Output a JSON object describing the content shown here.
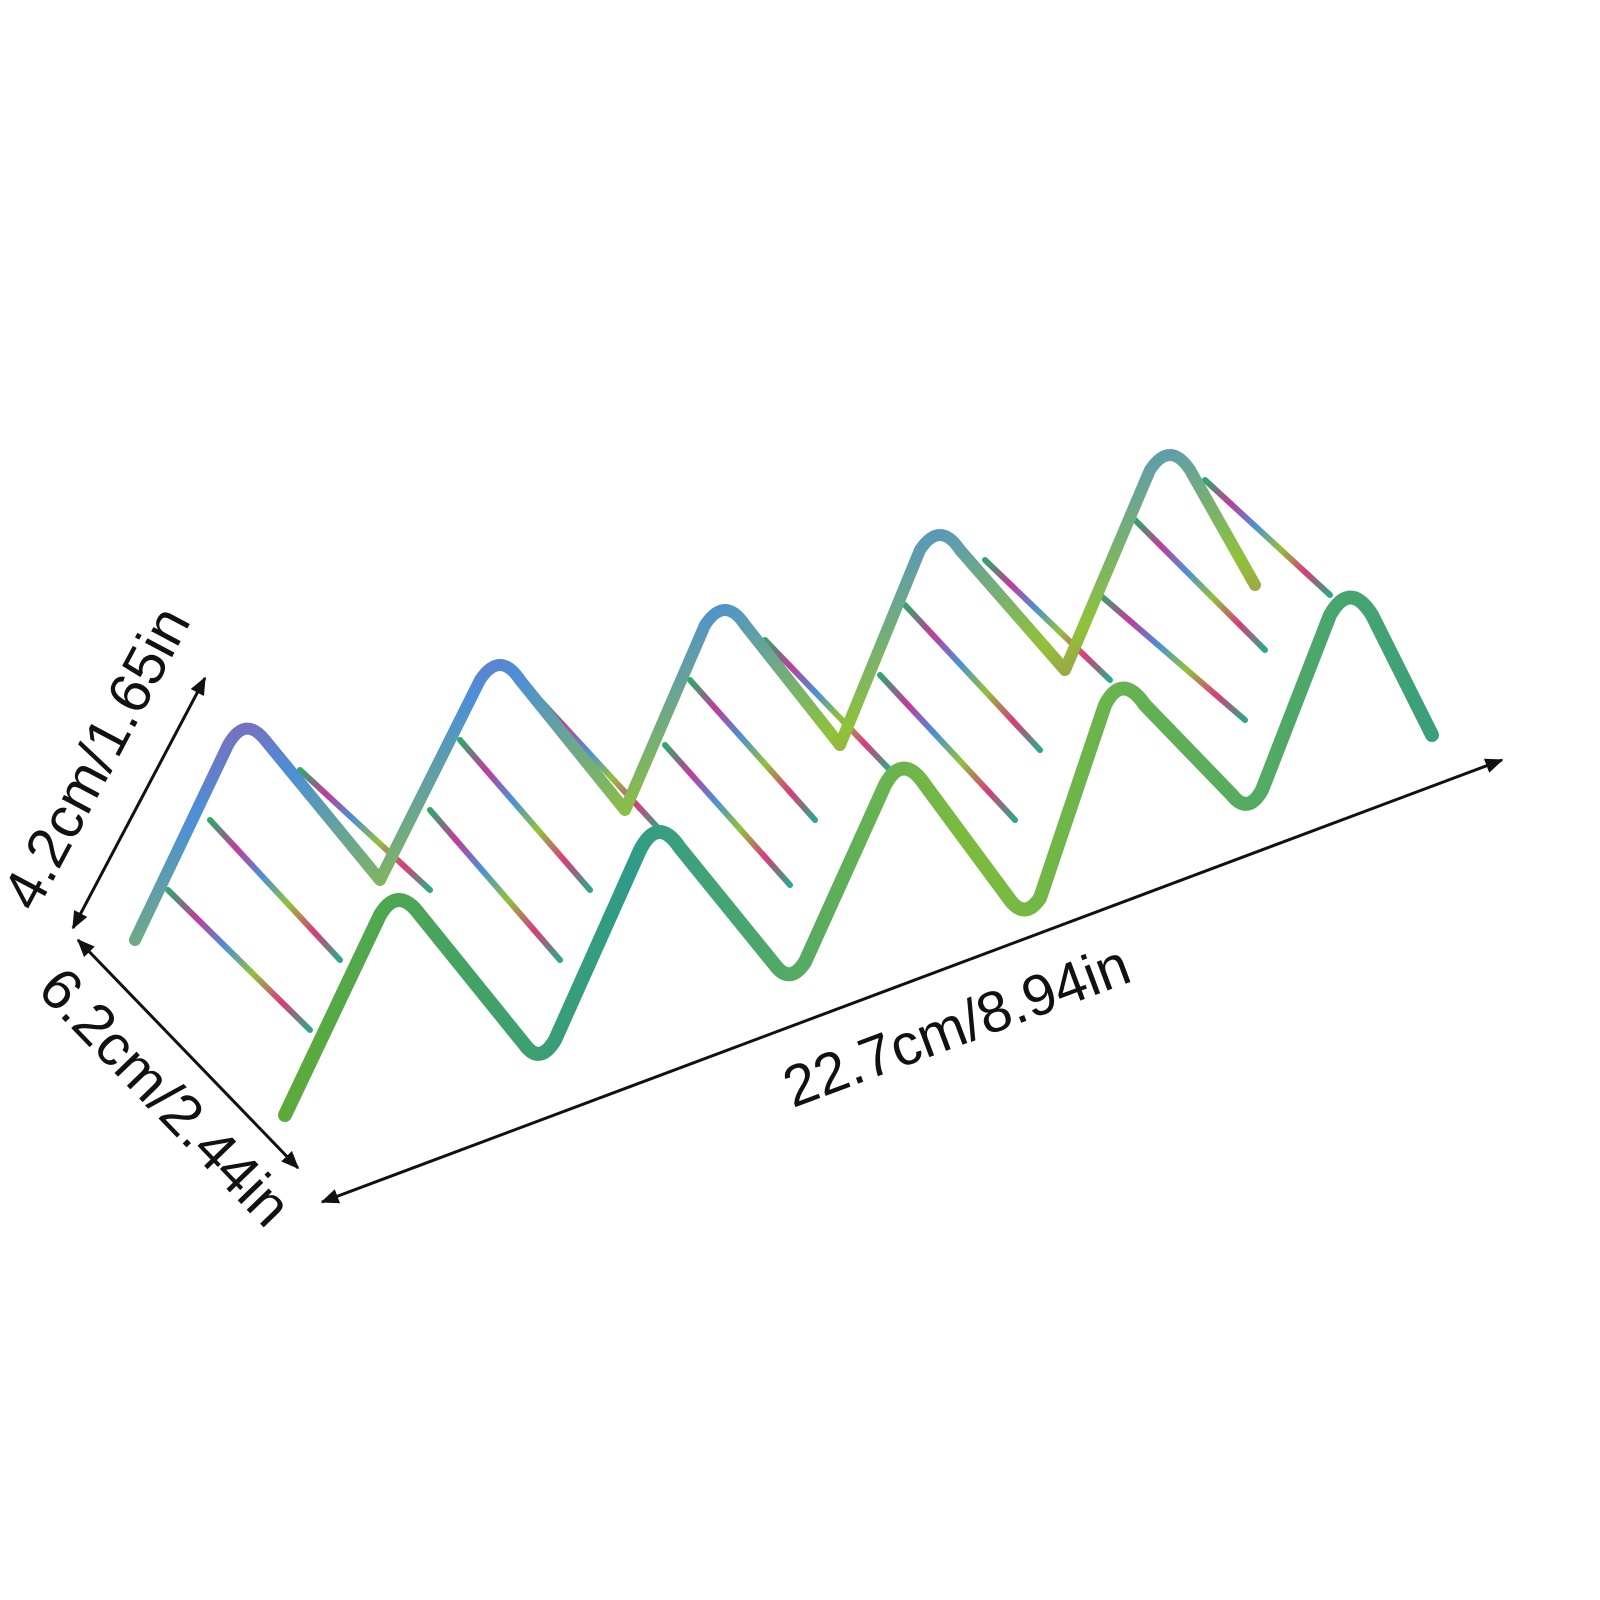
{
  "dimensions": {
    "height": "4.2cm/1.65in",
    "depth": "6.2cm/2.44in",
    "length": "22.7cm/8.94in"
  }
}
